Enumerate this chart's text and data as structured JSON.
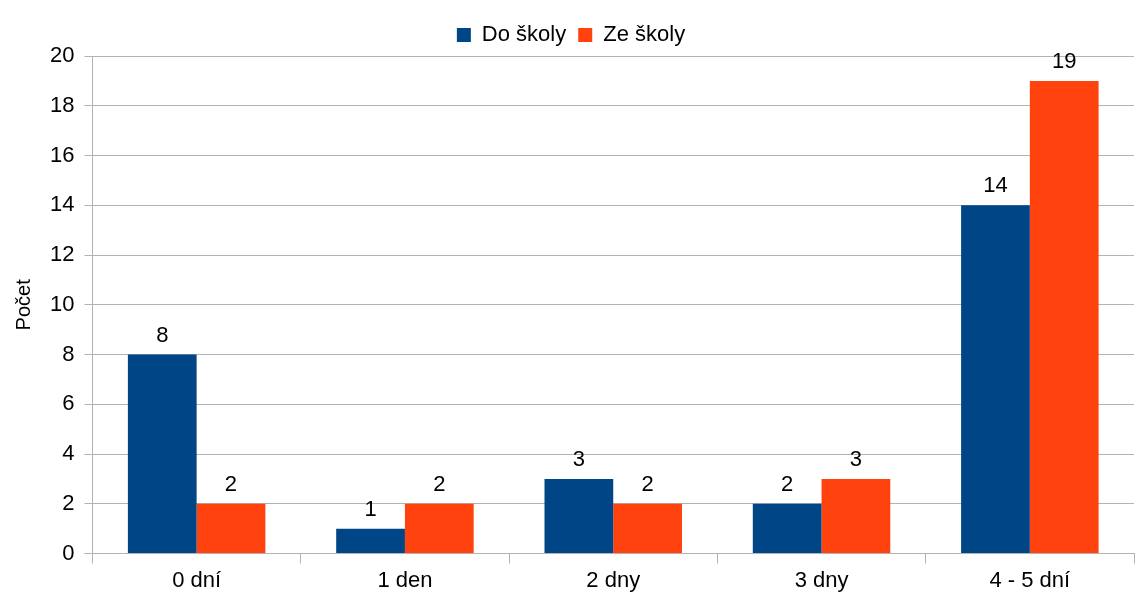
{
  "chart_data": {
    "type": "bar",
    "ylabel": "Počet",
    "categories": [
      "0 dní",
      "1 den",
      "2 dny",
      "3 dny",
      "4 - 5 dní"
    ],
    "series": [
      {
        "name": "Do školy",
        "color": "#004586",
        "values": [
          8,
          1,
          3,
          2,
          14
        ]
      },
      {
        "name": "Ze školy",
        "color": "#ff420e",
        "values": [
          2,
          2,
          2,
          3,
          19
        ]
      }
    ],
    "ylim": [
      0,
      20
    ],
    "yticks": [
      0,
      2,
      4,
      6,
      8,
      10,
      12,
      14,
      16,
      18,
      20
    ],
    "grid": "y",
    "legend": "top",
    "data_labels": true
  }
}
